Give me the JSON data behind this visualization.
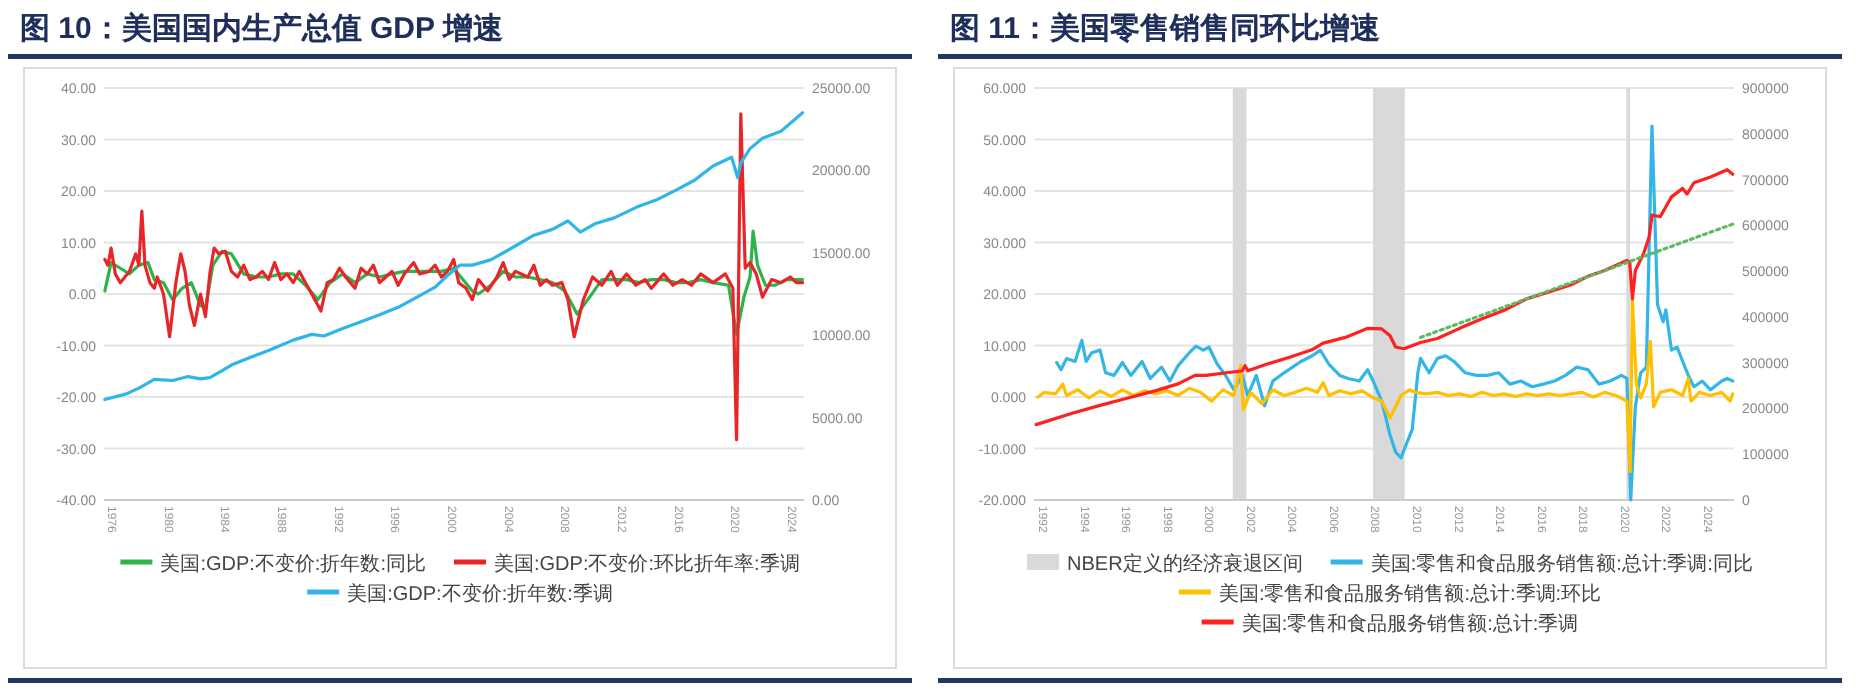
{
  "chart_data": [
    {
      "type": "line",
      "title": "图 10：美国国内生产总值 GDP 增速",
      "xlim": [
        1975.5,
        2024.9
      ],
      "xticks": [
        1976,
        1980,
        1984,
        1988,
        1992,
        1996,
        2000,
        2004,
        2008,
        2012,
        2016,
        2020,
        2024
      ],
      "ylim": [
        -40,
        40
      ],
      "yticks": [
        {
          "value": -40,
          "label": "-40.00"
        },
        {
          "value": -30,
          "label": "-30.00"
        },
        {
          "value": -20,
          "label": "-20.00"
        },
        {
          "value": -10,
          "label": "-10.00"
        },
        {
          "value": 0,
          "label": "0.00"
        },
        {
          "value": 10,
          "label": "10.00"
        },
        {
          "value": 20,
          "label": "20.00"
        },
        {
          "value": 30,
          "label": "30.00"
        },
        {
          "value": 40,
          "label": "40.00"
        }
      ],
      "y2lim": [
        0,
        25000
      ],
      "y2ticks": [
        {
          "value": 0,
          "label": "0.00"
        },
        {
          "value": 5000,
          "label": "5000.00"
        },
        {
          "value": 10000,
          "label": "10000.00"
        },
        {
          "value": 15000,
          "label": "15000.00"
        },
        {
          "value": 20000,
          "label": "20000.00"
        },
        {
          "value": 25000,
          "label": "25000.00"
        }
      ],
      "grid": "y",
      "legend": "bottom",
      "series": [
        {
          "name": "美国:GDP:不变价:折年数:同比",
          "color": "#2db34a",
          "x": [
            1975.56,
            1976.0,
            1976.65,
            1977.3,
            1977.96,
            1978.61,
            1979.05,
            1979.7,
            1980.35,
            1981.01,
            1981.66,
            1982.31,
            1982.66,
            1983.18,
            1983.84,
            1984.49,
            1985.36,
            1986.23,
            1987.11,
            1987.98,
            1988.85,
            1989.72,
            1990.59,
            1991.46,
            1992.34,
            1993.21,
            1994.08,
            1994.95,
            1995.82,
            1996.69,
            1997.56,
            1998.44,
            1999.31,
            2000.18,
            2000.83,
            2001.49,
            2001.92,
            2002.79,
            2003.67,
            2004.54,
            2005.41,
            2006.28,
            2007.15,
            2008.02,
            2008.89,
            2009.77,
            2010.64,
            2011.51,
            2012.38,
            2013.25,
            2014.12,
            2015.0,
            2015.87,
            2016.74,
            2017.61,
            2018.48,
            2019.57,
            2020.14,
            2020.66,
            2021.09,
            2021.31,
            2021.62,
            2022.18,
            2022.84,
            2023.71,
            2024.8
          ],
          "values": [
            0.6,
            6.1,
            5,
            3.9,
            5.6,
            6.1,
            2.8,
            2.2,
            -1.1,
            1.1,
            2.2,
            -2.2,
            -2.8,
            5.6,
            8.3,
            7.8,
            3.9,
            3.3,
            3.3,
            3.9,
            3.9,
            1.7,
            -1.1,
            2.2,
            3.9,
            2.2,
            3.9,
            3.3,
            3.9,
            4.4,
            4.4,
            4.4,
            4.4,
            5,
            2.8,
            0.6,
            0,
            1.7,
            4.4,
            3.3,
            3.3,
            2.8,
            2.2,
            0.6,
            -3.9,
            -0.6,
            2.8,
            2.8,
            2.8,
            2.2,
            2.8,
            2.8,
            2.2,
            2.2,
            2.8,
            2.2,
            1.7,
            -7.8,
            -0.6,
            3.3,
            12.2,
            5.6,
            1.7,
            1.7,
            2.8,
            2.8
          ]
        },
        {
          "name": "美国:GDP:不变价:环比折年率:季调",
          "color": "#e8262a",
          "x": [
            1975.56,
            1975.78,
            1976.0,
            1976.3,
            1976.65,
            1977.3,
            1977.74,
            1977.96,
            1978.17,
            1978.39,
            1978.74,
            1979.05,
            1979.26,
            1979.7,
            1980.13,
            1980.57,
            1980.92,
            1981.22,
            1981.53,
            1981.88,
            1982.31,
            1982.66,
            1982.97,
            1983.27,
            1983.62,
            1984.06,
            1984.49,
            1984.93,
            1985.36,
            1985.8,
            1986.23,
            1986.67,
            1987.11,
            1987.54,
            1987.98,
            1988.41,
            1988.85,
            1989.28,
            1989.72,
            1990.16,
            1990.81,
            1991.25,
            1991.68,
            1992.12,
            1992.55,
            1993.21,
            1993.64,
            1994.08,
            1994.51,
            1994.95,
            1995.39,
            1995.82,
            1996.26,
            1996.69,
            1997.35,
            1997.78,
            1998.44,
            1998.87,
            1999.31,
            1999.74,
            2000.18,
            2000.53,
            2001.05,
            2001.49,
            2001.92,
            2002.58,
            2003.23,
            2003.67,
            2004.1,
            2004.54,
            2005.41,
            2005.84,
            2006.28,
            2006.72,
            2007.15,
            2007.81,
            2008.24,
            2008.68,
            2009.33,
            2009.98,
            2010.64,
            2011.29,
            2011.73,
            2012.38,
            2013.03,
            2013.69,
            2014.12,
            2015.0,
            2015.65,
            2016.3,
            2016.96,
            2017.61,
            2018.48,
            2019.35,
            2019.88,
            2020.14,
            2020.44,
            2020.75,
            2021.09,
            2021.53,
            2021.97,
            2022.62,
            2023.27,
            2023.93,
            2024.36,
            2024.8
          ],
          "values": [
            6.7,
            5.6,
            8.9,
            3.9,
            2.2,
            4.4,
            7.8,
            5.6,
            16.1,
            5.6,
            2.2,
            1.1,
            3.3,
            0,
            -8.3,
            2.2,
            7.8,
            4.4,
            -2.2,
            -6.1,
            0,
            -4.4,
            4,
            8.9,
            7.8,
            8.3,
            4.4,
            3.3,
            5.6,
            2.8,
            3.3,
            4.4,
            2.8,
            6.1,
            2.8,
            3.9,
            2.2,
            4.4,
            2.2,
            0,
            -3.3,
            2.2,
            2.8,
            5,
            3.3,
            1.1,
            5,
            3.9,
            5.6,
            2.2,
            3.3,
            4.4,
            1.7,
            3.9,
            6.1,
            3.9,
            4.4,
            5.6,
            3.3,
            4.4,
            6.7,
            2.2,
            1.1,
            -1.1,
            2.8,
            0.6,
            3.3,
            6.1,
            2.8,
            4.4,
            3.3,
            5.6,
            1.7,
            2.8,
            1.7,
            2.2,
            -1.1,
            -8.3,
            -1.1,
            3.3,
            1.7,
            4.4,
            1.7,
            3.9,
            1.7,
            2.8,
            1.1,
            3.9,
            1.7,
            2.8,
            1.7,
            3.9,
            2.2,
            3.9,
            1.1,
            -28.3,
            35,
            5,
            6.1,
            3.9,
            -0.6,
            2.8,
            2.2,
            3.3,
            2.2,
            2.2
          ]
        },
        {
          "name": "美国:GDP:不变价:折年数:季调",
          "color": "#2fb5e8",
          "axis": "y2",
          "x": [
            1975.56,
            1977.08,
            1977.96,
            1979.05,
            1980.35,
            1981.44,
            1982.31,
            1982.97,
            1983.84,
            1984.49,
            1985.8,
            1987.11,
            1988.85,
            1990.16,
            1991.03,
            1992.34,
            1993.64,
            1994.95,
            1996.26,
            1997.56,
            1998.87,
            1999.74,
            2000.61,
            2001.49,
            2002.79,
            2004.1,
            2005.84,
            2007.15,
            2008.24,
            2008.68,
            2009.11,
            2010.2,
            2011.51,
            2013.25,
            2014.56,
            2015.87,
            2017.17,
            2018.48,
            2019.79,
            2020.22,
            2020.44,
            2021.09,
            2021.97,
            2023.27,
            2024.8
          ],
          "values": [
            6100,
            6440,
            6790,
            7320,
            7250,
            7490,
            7350,
            7430,
            7850,
            8190,
            8650,
            9070,
            9700,
            10050,
            9950,
            10400,
            10820,
            11240,
            11690,
            12290,
            12920,
            13620,
            14250,
            14250,
            14570,
            15200,
            16070,
            16420,
            16940,
            16600,
            16250,
            16780,
            17120,
            17830,
            18240,
            18800,
            19400,
            20270,
            20800,
            19570,
            20450,
            21320,
            21950,
            22370,
            23500
          ]
        }
      ]
    },
    {
      "type": "line",
      "title": "图 11：美国零售销售同环比增速",
      "xlim": [
        1991.6,
        2025.3
      ],
      "xticks": [
        1992,
        1994,
        1996,
        1998,
        2000,
        2002,
        2004,
        2006,
        2008,
        2010,
        2012,
        2014,
        2016,
        2018,
        2020,
        2022,
        2024
      ],
      "ylim": [
        -20,
        60
      ],
      "yticks": [
        {
          "value": -20,
          "label": "-20.000"
        },
        {
          "value": -10,
          "label": "-10.000"
        },
        {
          "value": 0,
          "label": "0.000"
        },
        {
          "value": 10,
          "label": "10.000"
        },
        {
          "value": 20,
          "label": "20.000"
        },
        {
          "value": 30,
          "label": "30.000"
        },
        {
          "value": 40,
          "label": "40.000"
        },
        {
          "value": 50,
          "label": "50.000"
        },
        {
          "value": 60,
          "label": "60.000"
        }
      ],
      "y2lim": [
        0,
        900000
      ],
      "y2ticks": [
        0,
        100000,
        200000,
        300000,
        400000,
        500000,
        600000,
        700000,
        800000,
        900000
      ],
      "grid": "y",
      "legend": "bottom",
      "bands": [
        {
          "axis": "x",
          "from": 2001.17,
          "to": 2001.83,
          "label": "NBER定义的经济衰退区间",
          "color": "#d9d9d9"
        },
        {
          "axis": "x",
          "from": 2007.92,
          "to": 2009.45,
          "color": "#d9d9d9"
        },
        {
          "axis": "x",
          "from": 2020.12,
          "to": 2020.3,
          "color": "#d9d9d9"
        }
      ],
      "series": [
        {
          "name": "美国:零售和食品服务销售额:总计:季调:同比",
          "color": "#33b5e8",
          "x": [
            1992.69,
            1992.9,
            1993.17,
            1993.58,
            1993.9,
            1994.11,
            1994.38,
            1994.78,
            1995.05,
            1995.45,
            1995.86,
            1996.26,
            1996.8,
            1997.2,
            1997.74,
            1998.14,
            1998.54,
            1999.08,
            1999.4,
            1999.75,
            2000.02,
            2000.42,
            2000.82,
            2001.22,
            2001.63,
            2001.89,
            2002.3,
            2002.7,
            2003.1,
            2003.64,
            2004.45,
            2005.0,
            2005.38,
            2005.79,
            2006.32,
            2006.72,
            2007.26,
            2007.66,
            2007.93,
            2008.34,
            2008.74,
            2009.01,
            2009.27,
            2009.54,
            2009.81,
            2010.08,
            2010.21,
            2010.62,
            2011.02,
            2011.42,
            2011.82,
            2012.36,
            2012.9,
            2013.43,
            2013.97,
            2014.51,
            2015.04,
            2015.58,
            2016.12,
            2016.66,
            2017.19,
            2017.73,
            2018.27,
            2018.8,
            2019.34,
            2019.88,
            2020.14,
            2020.33,
            2020.55,
            2020.81,
            2021.08,
            2021.35,
            2021.62,
            2021.89,
            2022.02,
            2022.29,
            2022.56,
            2022.83,
            2023.1,
            2023.37,
            2023.77,
            2024.17,
            2024.71,
            2024.97,
            2025.24
          ],
          "values": [
            6.7,
            5.3,
            7.5,
            6.9,
            11,
            6.9,
            8.6,
            9.1,
            4.7,
            4.2,
            6.7,
            4.2,
            6.9,
            3.6,
            5.8,
            3.1,
            6.1,
            8.6,
            9.9,
            9.1,
            9.7,
            6.4,
            4.2,
            1.4,
            4.2,
            0.3,
            4.2,
            -1.7,
            3.1,
            4.7,
            6.9,
            8.0,
            9.1,
            6.4,
            4.2,
            3.6,
            3.1,
            5.3,
            3.1,
            -0.8,
            -7.4,
            -10.7,
            -11.8,
            -9.0,
            -6.3,
            4.7,
            7.5,
            4.7,
            7.5,
            8.0,
            6.9,
            4.7,
            4.2,
            4.2,
            4.7,
            2.5,
            3.1,
            2.0,
            2.5,
            3.1,
            4.2,
            5.8,
            5.3,
            2.5,
            3.1,
            4.2,
            3.6,
            -20.0,
            -1.9,
            4.7,
            5.8,
            52.6,
            17.9,
            14.6,
            16.9,
            9.1,
            9.7,
            6.9,
            4.2,
            2.0,
            3.1,
            1.4,
            3.1,
            3.6,
            3.1
          ]
        },
        {
          "name": "美国:零售和食品服务销售额:总计:季调:环比",
          "color": "#ffc000",
          "x": [
            1991.78,
            1992.1,
            1992.64,
            1992.98,
            1993.17,
            1993.71,
            1994.25,
            1994.78,
            1995.32,
            1995.86,
            1996.39,
            1996.93,
            1997.47,
            1998.0,
            1998.54,
            1999.08,
            1999.61,
            2000.15,
            2000.69,
            2001.22,
            2001.55,
            2001.68,
            2002.03,
            2002.57,
            2003.1,
            2003.64,
            2004.18,
            2004.71,
            2005.25,
            2005.52,
            2005.79,
            2006.32,
            2006.86,
            2007.4,
            2007.94,
            2008.34,
            2008.74,
            2009.01,
            2009.27,
            2009.68,
            2009.95,
            2010.48,
            2011.02,
            2011.56,
            2012.09,
            2012.63,
            2013.17,
            2013.7,
            2014.24,
            2014.78,
            2015.31,
            2015.85,
            2016.39,
            2016.92,
            2017.46,
            2018.0,
            2018.53,
            2019.07,
            2019.61,
            2020.14,
            2020.3,
            2020.41,
            2020.6,
            2020.81,
            2021.08,
            2021.27,
            2021.43,
            2021.75,
            2022.29,
            2022.83,
            2023.1,
            2023.23,
            2023.63,
            2024.17,
            2024.71,
            2025.11,
            2025.24
          ],
          "values": [
            0,
            0.9,
            0.6,
            2.5,
            0.3,
            1.4,
            -0.2,
            1.2,
            0.1,
            1.4,
            0.3,
            1.2,
            0.6,
            1.2,
            0.3,
            1.7,
            0.9,
            -0.8,
            1.4,
            0.3,
            6.1,
            -2.4,
            0.9,
            -1.3,
            1.4,
            0.3,
            0.9,
            1.7,
            0.9,
            2.8,
            0.3,
            1.2,
            0.6,
            1.2,
            -0.2,
            -0.8,
            -4.1,
            -1.9,
            0.3,
            1.4,
            0.9,
            0.6,
            0.9,
            0.3,
            0.6,
            0.1,
            0.9,
            0.3,
            0.6,
            0.1,
            0.6,
            0.3,
            0.6,
            0.3,
            0.6,
            0.9,
            0,
            0.9,
            0.3,
            -0.8,
            -14.5,
            19.1,
            2.5,
            -0.2,
            2.5,
            10.8,
            -1.9,
            0.9,
            1.4,
            0.3,
            3.6,
            -0.8,
            0.9,
            0.3,
            0.9,
            -0.8,
            0.6
          ]
        },
        {
          "name": "美国:零售和食品服务销售额:总计:季调",
          "color": "#ff2020",
          "axis": "y2",
          "x": [
            1991.7,
            1993.44,
            1994.78,
            1996.12,
            1997.47,
            1998.54,
            1999.35,
            1999.88,
            2000.96,
            2001.63,
            2001.76,
            2001.89,
            2002.83,
            2003.91,
            2004.98,
            2005.52,
            2006.59,
            2007.67,
            2008.34,
            2008.74,
            2009.01,
            2009.41,
            2010.21,
            2011.02,
            2012.09,
            2013.17,
            2014.24,
            2015.31,
            2016.39,
            2017.46,
            2018.27,
            2019.07,
            2020.14,
            2020.28,
            2020.41,
            2020.55,
            2020.95,
            2021.22,
            2021.35,
            2021.75,
            2022.29,
            2022.83,
            2023.04,
            2023.37,
            2024.17,
            2024.97,
            2025.24
          ],
          "values": [
            164600,
            189400,
            206700,
            222800,
            238900,
            253700,
            272300,
            272300,
            278500,
            282200,
            293300,
            282200,
            297000,
            311900,
            328000,
            342800,
            355200,
            375000,
            373800,
            358900,
            334200,
            330400,
            344100,
            352700,
            375000,
            396000,
            414600,
            439300,
            454200,
            470300,
            488900,
            501200,
            523500,
            519800,
            439300,
            501200,
            538300,
            575500,
            622500,
            618800,
            662100,
            680700,
            668300,
            693000,
            705400,
            721500,
            711600
          ]
        },
        {
          "type": "line",
          "color": "#5dbb63",
          "axis": "y2",
          "line_style": "dotted",
          "x": [
            2010.21,
            2025.24
          ],
          "values": [
            355200,
            602700
          ]
        }
      ]
    }
  ]
}
